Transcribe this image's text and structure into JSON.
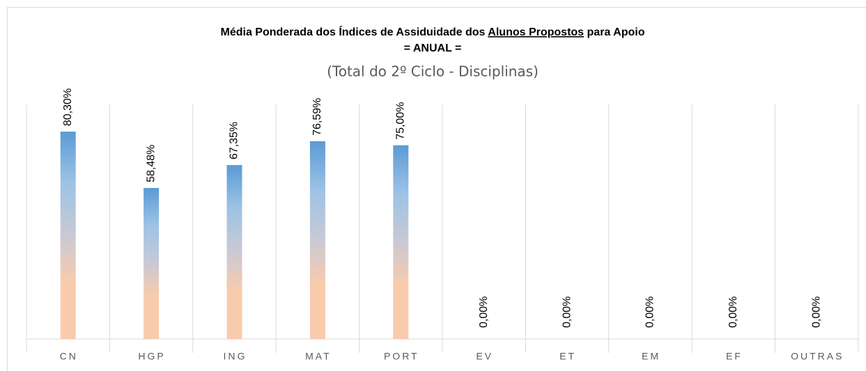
{
  "chart_data": {
    "type": "bar",
    "title": [
      "Média Ponderada dos Índices de Assiduidade dos ",
      "Alunos Propostos",
      " para Apoio"
    ],
    "title_line2": "= ANUAL =",
    "subtitle": "(Total do 2º Ciclo - Disciplinas)",
    "categories": [
      "CN",
      "HGP",
      "ING",
      "MAT",
      "PORT",
      "EV",
      "ET",
      "EM",
      "EF",
      "OUTRAS"
    ],
    "values": [
      80.3,
      58.48,
      67.35,
      76.59,
      75.0,
      0,
      0,
      0,
      0,
      0
    ],
    "value_labels": [
      "80,30%",
      "58,48%",
      "67,35%",
      "76,59%",
      "75,00%",
      "0,00%",
      "0,00%",
      "0,00%",
      "0,00%",
      "0,00%"
    ],
    "gradient_colors": [
      "#5b9bd5",
      "#9dc3e6",
      "#c9c9d4",
      "#f8cbad"
    ],
    "ylim": [
      0,
      100
    ]
  }
}
